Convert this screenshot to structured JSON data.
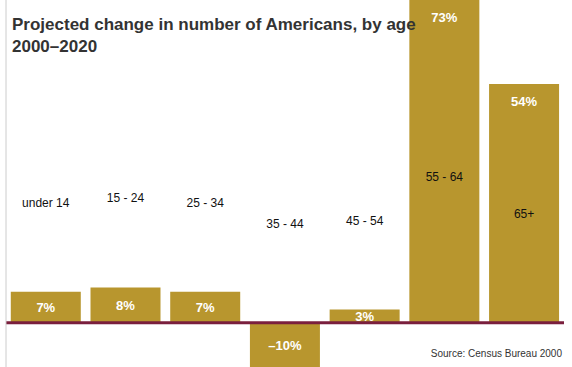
{
  "chart_data": {
    "type": "bar",
    "title": "Projected change in number of Americans, by age",
    "subtitle": "2000–2020",
    "categories": [
      "under 14",
      "15 - 24",
      "25 - 34",
      "35 - 44",
      "45 - 54",
      "55 - 64",
      "65+"
    ],
    "values": [
      7,
      8,
      7,
      -10,
      3,
      73,
      54
    ],
    "value_labels": [
      "7%",
      "8%",
      "7%",
      "–10%",
      "3%",
      "73%",
      "54%"
    ],
    "color": "#b8962e",
    "ylim": [
      -10,
      73
    ],
    "data_labels": true,
    "tick_labels": false,
    "annotations": [
      "Source: Census Bureau 2000"
    ]
  }
}
